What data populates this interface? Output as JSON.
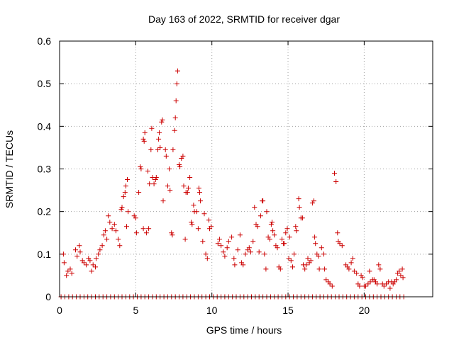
{
  "chart_data": {
    "type": "scatter",
    "title": "Day 163 of 2022, SRMTID for receiver dgar",
    "xlabel": "GPS time / hours",
    "ylabel": "SRMTID / TECUs",
    "xlim": [
      0,
      24.5
    ],
    "ylim": [
      0,
      0.6
    ],
    "xticks": [
      0,
      5,
      10,
      15,
      20
    ],
    "yticks": [
      0,
      0.1,
      0.2,
      0.3,
      0.4,
      0.5,
      0.6
    ],
    "xtick_labels": [
      "0",
      "5",
      "10",
      "15",
      "20"
    ],
    "ytick_labels": [
      "0",
      "0.1",
      "0.2",
      "0.3",
      "0.4",
      "0.5",
      "0.6"
    ],
    "grid": true,
    "marker": "+",
    "color": "#cc0000",
    "series": [
      {
        "name": "SRMTID",
        "points": [
          [
            0.25,
            0.1
          ],
          [
            0.3,
            0.08
          ],
          [
            0.45,
            0.05
          ],
          [
            0.55,
            0.06
          ],
          [
            0.7,
            0.065
          ],
          [
            0.8,
            0.055
          ],
          [
            1.05,
            0.11
          ],
          [
            1.15,
            0.095
          ],
          [
            1.3,
            0.12
          ],
          [
            1.35,
            0.105
          ],
          [
            1.5,
            0.085
          ],
          [
            1.6,
            0.08
          ],
          [
            1.75,
            0.075
          ],
          [
            1.9,
            0.09
          ],
          [
            2.0,
            0.085
          ],
          [
            2.1,
            0.06
          ],
          [
            2.2,
            0.075
          ],
          [
            2.35,
            0.07
          ],
          [
            2.4,
            0.09
          ],
          [
            2.55,
            0.1
          ],
          [
            2.65,
            0.11
          ],
          [
            2.8,
            0.12
          ],
          [
            2.9,
            0.145
          ],
          [
            3.0,
            0.155
          ],
          [
            3.1,
            0.135
          ],
          [
            3.2,
            0.19
          ],
          [
            3.3,
            0.175
          ],
          [
            3.45,
            0.16
          ],
          [
            3.6,
            0.17
          ],
          [
            3.7,
            0.155
          ],
          [
            3.85,
            0.135
          ],
          [
            3.95,
            0.12
          ],
          [
            4.05,
            0.205
          ],
          [
            4.1,
            0.21
          ],
          [
            4.2,
            0.235
          ],
          [
            4.3,
            0.245
          ],
          [
            4.35,
            0.26
          ],
          [
            4.45,
            0.275
          ],
          [
            4.4,
            0.165
          ],
          [
            4.5,
            0.2
          ],
          [
            4.9,
            0.19
          ],
          [
            5.0,
            0.185
          ],
          [
            5.05,
            0.15
          ],
          [
            5.2,
            0.245
          ],
          [
            5.3,
            0.305
          ],
          [
            5.35,
            0.3
          ],
          [
            5.5,
            0.37
          ],
          [
            5.55,
            0.365
          ],
          [
            5.5,
            0.16
          ],
          [
            5.6,
            0.385
          ],
          [
            5.7,
            0.15
          ],
          [
            5.8,
            0.295
          ],
          [
            5.85,
            0.16
          ],
          [
            5.9,
            0.265
          ],
          [
            6.0,
            0.345
          ],
          [
            6.05,
            0.395
          ],
          [
            6.1,
            0.28
          ],
          [
            6.2,
            0.265
          ],
          [
            6.3,
            0.275
          ],
          [
            6.35,
            0.28
          ],
          [
            6.45,
            0.345
          ],
          [
            6.5,
            0.37
          ],
          [
            6.55,
            0.385
          ],
          [
            6.6,
            0.35
          ],
          [
            6.7,
            0.41
          ],
          [
            6.75,
            0.415
          ],
          [
            6.8,
            0.225
          ],
          [
            6.95,
            0.345
          ],
          [
            7.0,
            0.33
          ],
          [
            7.1,
            0.26
          ],
          [
            7.2,
            0.3
          ],
          [
            7.25,
            0.25
          ],
          [
            7.35,
            0.15
          ],
          [
            7.4,
            0.145
          ],
          [
            7.45,
            0.345
          ],
          [
            7.55,
            0.39
          ],
          [
            7.6,
            0.42
          ],
          [
            7.65,
            0.46
          ],
          [
            7.7,
            0.5
          ],
          [
            7.75,
            0.53
          ],
          [
            7.85,
            0.31
          ],
          [
            7.9,
            0.305
          ],
          [
            8.0,
            0.325
          ],
          [
            8.1,
            0.33
          ],
          [
            8.15,
            0.26
          ],
          [
            8.25,
            0.135
          ],
          [
            8.3,
            0.245
          ],
          [
            8.4,
            0.245
          ],
          [
            8.45,
            0.255
          ],
          [
            8.55,
            0.28
          ],
          [
            8.65,
            0.175
          ],
          [
            8.7,
            0.17
          ],
          [
            8.8,
            0.215
          ],
          [
            8.85,
            0.2
          ],
          [
            9.0,
            0.2
          ],
          [
            9.1,
            0.16
          ],
          [
            9.15,
            0.255
          ],
          [
            9.2,
            0.245
          ],
          [
            9.25,
            0.225
          ],
          [
            9.4,
            0.13
          ],
          [
            9.5,
            0.195
          ],
          [
            9.6,
            0.1
          ],
          [
            9.7,
            0.09
          ],
          [
            9.8,
            0.18
          ],
          [
            9.85,
            0.16
          ],
          [
            9.95,
            0.165
          ],
          [
            10.4,
            0.125
          ],
          [
            10.5,
            0.135
          ],
          [
            10.6,
            0.12
          ],
          [
            10.75,
            0.105
          ],
          [
            10.85,
            0.095
          ],
          [
            11.0,
            0.115
          ],
          [
            11.1,
            0.13
          ],
          [
            11.3,
            0.14
          ],
          [
            11.45,
            0.09
          ],
          [
            11.5,
            0.075
          ],
          [
            11.7,
            0.11
          ],
          [
            11.85,
            0.145
          ],
          [
            11.95,
            0.08
          ],
          [
            12.05,
            0.075
          ],
          [
            12.2,
            0.1
          ],
          [
            12.35,
            0.11
          ],
          [
            12.45,
            0.115
          ],
          [
            12.55,
            0.105
          ],
          [
            12.7,
            0.13
          ],
          [
            12.8,
            0.21
          ],
          [
            12.9,
            0.17
          ],
          [
            13.0,
            0.165
          ],
          [
            13.1,
            0.105
          ],
          [
            13.2,
            0.19
          ],
          [
            13.3,
            0.225
          ],
          [
            13.35,
            0.225
          ],
          [
            13.45,
            0.1
          ],
          [
            13.55,
            0.065
          ],
          [
            13.6,
            0.2
          ],
          [
            13.7,
            0.14
          ],
          [
            13.8,
            0.135
          ],
          [
            13.9,
            0.17
          ],
          [
            13.95,
            0.175
          ],
          [
            14.0,
            0.155
          ],
          [
            14.1,
            0.145
          ],
          [
            14.2,
            0.12
          ],
          [
            14.3,
            0.115
          ],
          [
            14.4,
            0.07
          ],
          [
            14.5,
            0.065
          ],
          [
            14.6,
            0.135
          ],
          [
            14.7,
            0.125
          ],
          [
            14.75,
            0.125
          ],
          [
            14.85,
            0.15
          ],
          [
            14.95,
            0.16
          ],
          [
            15.05,
            0.09
          ],
          [
            15.1,
            0.14
          ],
          [
            15.2,
            0.085
          ],
          [
            15.3,
            0.07
          ],
          [
            15.4,
            0.1
          ],
          [
            15.5,
            0.165
          ],
          [
            15.55,
            0.155
          ],
          [
            15.7,
            0.23
          ],
          [
            15.75,
            0.21
          ],
          [
            15.85,
            0.185
          ],
          [
            15.95,
            0.185
          ],
          [
            16.0,
            0.075
          ],
          [
            16.1,
            0.065
          ],
          [
            16.2,
            0.075
          ],
          [
            16.3,
            0.09
          ],
          [
            16.4,
            0.08
          ],
          [
            16.5,
            0.085
          ],
          [
            16.6,
            0.22
          ],
          [
            16.7,
            0.225
          ],
          [
            16.75,
            0.14
          ],
          [
            16.8,
            0.125
          ],
          [
            16.9,
            0.1
          ],
          [
            17.0,
            0.095
          ],
          [
            17.05,
            0.065
          ],
          [
            17.2,
            0.115
          ],
          [
            17.35,
            0.1
          ],
          [
            17.4,
            0.065
          ],
          [
            17.5,
            0.04
          ],
          [
            17.65,
            0.035
          ],
          [
            17.75,
            0.03
          ],
          [
            17.9,
            0.025
          ],
          [
            18.05,
            0.29
          ],
          [
            18.15,
            0.27
          ],
          [
            18.25,
            0.15
          ],
          [
            18.3,
            0.13
          ],
          [
            18.4,
            0.125
          ],
          [
            18.55,
            0.12
          ],
          [
            18.8,
            0.075
          ],
          [
            18.9,
            0.07
          ],
          [
            19.0,
            0.065
          ],
          [
            19.15,
            0.08
          ],
          [
            19.25,
            0.09
          ],
          [
            19.35,
            0.06
          ],
          [
            19.5,
            0.055
          ],
          [
            19.6,
            0.03
          ],
          [
            19.7,
            0.025
          ],
          [
            19.8,
            0.05
          ],
          [
            19.9,
            0.045
          ],
          [
            20.0,
            0.025
          ],
          [
            20.1,
            0.025
          ],
          [
            20.25,
            0.03
          ],
          [
            20.35,
            0.06
          ],
          [
            20.4,
            0.035
          ],
          [
            20.55,
            0.04
          ],
          [
            20.65,
            0.04
          ],
          [
            20.75,
            0.035
          ],
          [
            20.85,
            0.03
          ],
          [
            20.95,
            0.075
          ],
          [
            21.05,
            0.065
          ],
          [
            21.2,
            0.03
          ],
          [
            21.3,
            0.025
          ],
          [
            21.45,
            0.03
          ],
          [
            21.6,
            0.035
          ],
          [
            21.7,
            0.02
          ],
          [
            21.8,
            0.035
          ],
          [
            21.9,
            0.03
          ],
          [
            22.0,
            0.035
          ],
          [
            22.1,
            0.04
          ],
          [
            22.2,
            0.055
          ],
          [
            22.3,
            0.06
          ],
          [
            22.4,
            0.05
          ],
          [
            22.5,
            0.065
          ],
          [
            22.55,
            0.045
          ]
        ]
      },
      {
        "name": "SRMTID baseline (zero)",
        "x_start": 0.1,
        "x_end": 22.6,
        "x_step": 0.25,
        "y": 0
      }
    ]
  }
}
